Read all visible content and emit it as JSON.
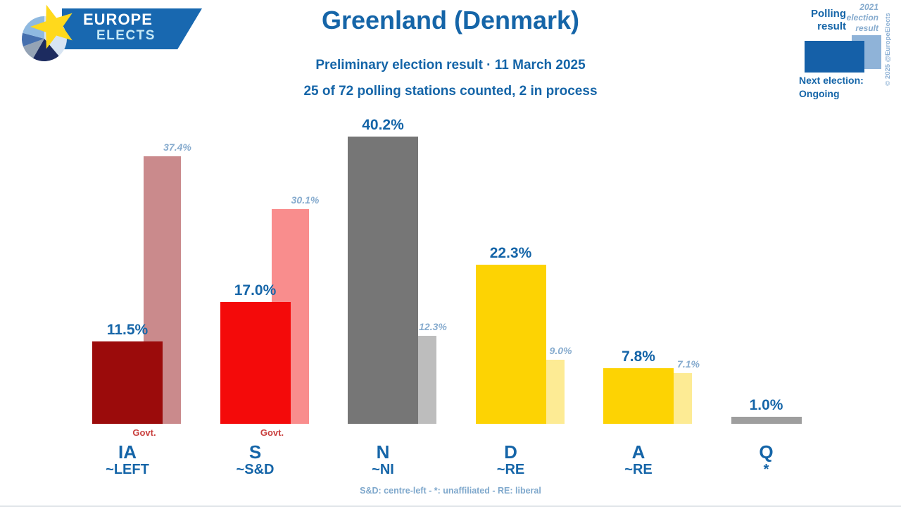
{
  "brand": {
    "line1": "EUROPE",
    "line2": "ELECTS"
  },
  "header": {
    "title": "Greenland (Denmark)",
    "subtitle": "Preliminary election result · 11 March 2025",
    "subtitle2": "25 of 72 polling stations counted, 2 in process"
  },
  "legend": {
    "polling_label": "Polling result",
    "previous_label": "2021 election result",
    "polling_color": "#1560A8",
    "previous_color": "#8FB3D8",
    "next_election_label": "Next election:",
    "next_election_value": "Ongoing"
  },
  "copyright": "© 2025 @EuropeElects",
  "footer": "S&D: centre-left - *: unaffiliated - RE: liberal",
  "chart_data": {
    "type": "bar",
    "title": "Greenland (Denmark) preliminary election result · 11 March 2025",
    "unit": "%",
    "ylim": [
      0,
      42
    ],
    "grid": false,
    "legend_position": "top-right",
    "categories": [
      "IA",
      "S",
      "N",
      "D",
      "A",
      "Q"
    ],
    "series_names": [
      "Polling result",
      "2021 election result"
    ],
    "parties": [
      {
        "code": "IA",
        "group": "~LEFT",
        "poll": 11.5,
        "poll_label": "11.5%",
        "prev": 37.4,
        "prev_label": "37.4%",
        "color": "#9B0B0B",
        "prev_color": "#CA8A8C",
        "govt": "Govt."
      },
      {
        "code": "S",
        "group": "~S&D",
        "poll": 17.0,
        "poll_label": "17.0%",
        "prev": 30.1,
        "prev_label": "30.1%",
        "color": "#F40A0A",
        "prev_color": "#F98D8D",
        "govt": "Govt."
      },
      {
        "code": "N",
        "group": "~NI",
        "poll": 40.2,
        "poll_label": "40.2%",
        "prev": 12.3,
        "prev_label": "12.3%",
        "color": "#767676",
        "prev_color": "#BDBDBD",
        "govt": null
      },
      {
        "code": "D",
        "group": "~RE",
        "poll": 22.3,
        "poll_label": "22.3%",
        "prev": 9.0,
        "prev_label": "9.0%",
        "color": "#FDD303",
        "prev_color": "#FDEB94",
        "govt": null
      },
      {
        "code": "A",
        "group": "~RE",
        "poll": 7.8,
        "poll_label": "7.8%",
        "prev": 7.1,
        "prev_label": "7.1%",
        "color": "#FDD303",
        "prev_color": "#FDEB94",
        "govt": null
      },
      {
        "code": "Q",
        "group": "*",
        "poll": 1.0,
        "poll_label": "1.0%",
        "prev": null,
        "prev_label": null,
        "color": "#9E9E9E",
        "prev_color": null,
        "govt": null
      }
    ]
  }
}
